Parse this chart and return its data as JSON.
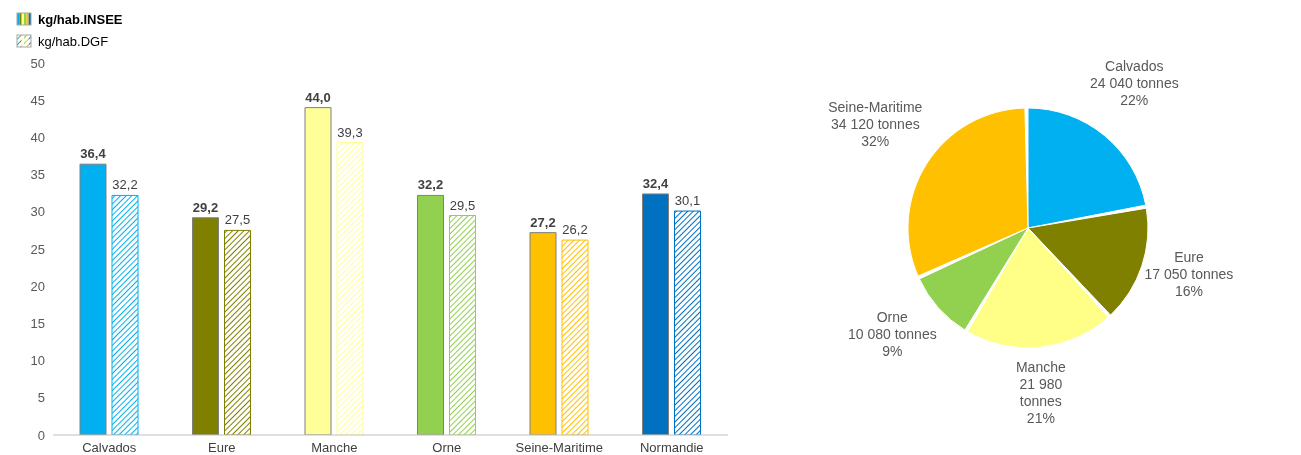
{
  "chart_data": [
    {
      "type": "bar",
      "categories": [
        "Calvados",
        "Eure",
        "Manche",
        "Orne",
        "Seine-Maritime",
        "Normandie"
      ],
      "series": [
        {
          "name": "kg/hab.INSEE",
          "color": "#a6a6a6",
          "colors": [
            "#00b0f0",
            "#808000",
            "#ffff99",
            "#92d050",
            "#ffc000",
            "#0070c0"
          ],
          "values": [
            36.4,
            29.2,
            44.0,
            32.2,
            27.2,
            32.4
          ],
          "value_labels": [
            "36,4",
            "29,2",
            "44,0",
            "32,2",
            "27,2",
            "32,4"
          ]
        },
        {
          "name": "kg/hab.DGF",
          "color": "#a6a6a6",
          "colors": [
            "#00b0f0",
            "#808000",
            "#ffff99",
            "#92d050",
            "#ffc000",
            "#0070c0"
          ],
          "values": [
            32.2,
            27.5,
            39.3,
            29.5,
            26.2,
            30.1
          ],
          "value_labels": [
            "32,2",
            "27,5",
            "39,3",
            "29,5",
            "26,2",
            "30,1"
          ]
        }
      ],
      "ylim": [
        0,
        50
      ],
      "yticks": [
        0,
        5,
        10,
        15,
        20,
        25,
        30,
        35,
        40,
        45,
        50
      ],
      "legend": "top left"
    },
    {
      "type": "pie",
      "categories": [
        "Calvados",
        "Eure",
        "Manche",
        "Orne",
        "Seine-Maritime"
      ],
      "values": [
        24040,
        17050,
        21980,
        10080,
        34120
      ],
      "colors": [
        "#00b0f0",
        "#808000",
        "#ffff88",
        "#92d050",
        "#ffc000"
      ],
      "value_labels": [
        "24 040 tonnes\n22%",
        "17 050 tonnes\n16%",
        "21 980\ntonnes\n21%",
        "10 080 tonnes\n9%",
        "34 120 tonnes\n32%"
      ]
    }
  ]
}
